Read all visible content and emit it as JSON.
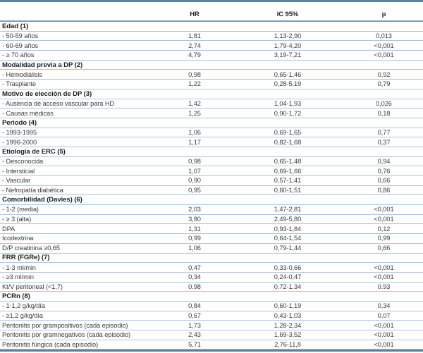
{
  "table": {
    "title_semantic": "Multivariate Cox regression table (HR, 95% CI, p)",
    "header": {
      "label": "",
      "hr": "HR",
      "ic": "IC 95%",
      "p": "p"
    },
    "colors": {
      "accent_bar": "#5f7f9e",
      "header_rule": "#7d9dbd",
      "row_separator": "#adc6de",
      "section_text": "#1f1f1f",
      "body_text": "#3c3c3c"
    },
    "rows": [
      {
        "type": "section",
        "label": "Edad (1)"
      },
      {
        "type": "data",
        "label": "- 50-59 años",
        "hr": "1,81",
        "ic": "1,13-2,90",
        "p": "0,013"
      },
      {
        "type": "data",
        "label": "- 60-69 años",
        "hr": "2,74",
        "ic": "1,79-4,20",
        "p": "<0,001"
      },
      {
        "type": "data",
        "label": "- ≥ 70 años",
        "hr": "4,79",
        "ic": "3,19-7,21",
        "p": "<0,001"
      },
      {
        "type": "section",
        "label": "Modalidad previa a DP (2)"
      },
      {
        "type": "data",
        "label": "- Hemodiálisis",
        "hr": "0,98",
        "ic": "0,65-1,46",
        "p": "0,92"
      },
      {
        "type": "data",
        "label": "- Trasplante",
        "hr": "1,22",
        "ic": "0,28-5,19",
        "p": "0,79"
      },
      {
        "type": "section",
        "label": "Motivo de elección de DP  (3)"
      },
      {
        "type": "data",
        "label": "- Ausencia de acceso vascular para HD",
        "hr": "1,42",
        "ic": "1,04-1,93",
        "p": "0,026"
      },
      {
        "type": "data",
        "label": "- Causas médicas",
        "hr": "1,25",
        "ic": "0,90-1,72",
        "p": "0,18"
      },
      {
        "type": "section",
        "label": "Periodo (4)"
      },
      {
        "type": "data",
        "label": "- 1993-1995",
        "hr": "1,06",
        "ic": "0,69-1,65",
        "p": "0,77"
      },
      {
        "type": "data",
        "label": "- 1996-2000",
        "hr": "1,17",
        "ic": "0,82-1,68",
        "p": "0,37"
      },
      {
        "type": "section",
        "label": "Etiología de ERC (5)"
      },
      {
        "type": "data",
        "label": "- Desconocida",
        "hr": "0,98",
        "ic": "0,65-1,48",
        "p": "0,94"
      },
      {
        "type": "data",
        "label": "- Intersticial",
        "hr": "1,07",
        "ic": "0,69-1,66",
        "p": "0,76"
      },
      {
        "type": "data",
        "label": "- Vascular",
        "hr": "0,90",
        "ic": "0,57-1,41",
        "p": "0,66"
      },
      {
        "type": "data",
        "label": "- Nefropatía diabética",
        "hr": "0,95",
        "ic": "0,60-1,51",
        "p": "0,86"
      },
      {
        "type": "section",
        "label": "Comorbilidad (Davies) (6)"
      },
      {
        "type": "data",
        "label": "- 1-2 (media)",
        "hr": "2,03",
        "ic": "1,47-2,81",
        "p": "<0,001"
      },
      {
        "type": "data",
        "label": "- ≥ 3 (alta)",
        "hr": "3,80",
        "ic": "2,49-5,80",
        "p": "<0,001"
      },
      {
        "type": "data",
        "label": "DPA",
        "hr": "1,31",
        "ic": "0,93-1,84",
        "p": "0,12"
      },
      {
        "type": "data",
        "label": "Icodextrina",
        "hr": "0,99",
        "ic": "0,64-1,54",
        "p": "0,99"
      },
      {
        "type": "data",
        "label": "D/P creatinina ≥0,65",
        "hr": "1,06",
        "ic": "0,79-1,44",
        "p": "0,66"
      },
      {
        "type": "section",
        "label": "FRR (FGRe)  (7)"
      },
      {
        "type": "data",
        "label": "- 1-3 ml/min",
        "hr": "0,47",
        "ic": "0,33-0,66",
        "p": "<0,001"
      },
      {
        "type": "data",
        "label": "- ≥3 ml/min",
        "hr": "0,34",
        "ic": "0,24-0,47",
        "p": "<0,001"
      },
      {
        "type": "data",
        "label": "Kt/V peritoneal (<1,7)",
        "hr": "0.98",
        "ic": "0.72-1.34",
        "p": "0.93"
      },
      {
        "type": "section",
        "label": "PCRn (8)"
      },
      {
        "type": "data",
        "label": "- 1-1,2 g/kg/día",
        "hr": "0,84",
        "ic": "0,60-1,19",
        "p": "0,34"
      },
      {
        "type": "data",
        "label": "- ≥1,2 g/kg/día",
        "hr": "0,67",
        "ic": "0,43-1,03",
        "p": "0,07"
      },
      {
        "type": "data",
        "label": "Peritonitis por grampositivos (cada episodio)",
        "hr": "1,73",
        "ic": "1,28-2,34",
        "p": "<0,001"
      },
      {
        "type": "data",
        "label": "Peritonitis por gramnegativos (cada episodio)",
        "hr": "2,43",
        "ic": "1,69-3,52",
        "p": "<0,001"
      },
      {
        "type": "data",
        "label": "Peritonitis fúngica (cada episodio)",
        "hr": "5,71",
        "ic": "2,76-11,8",
        "p": "<0,001"
      }
    ]
  }
}
